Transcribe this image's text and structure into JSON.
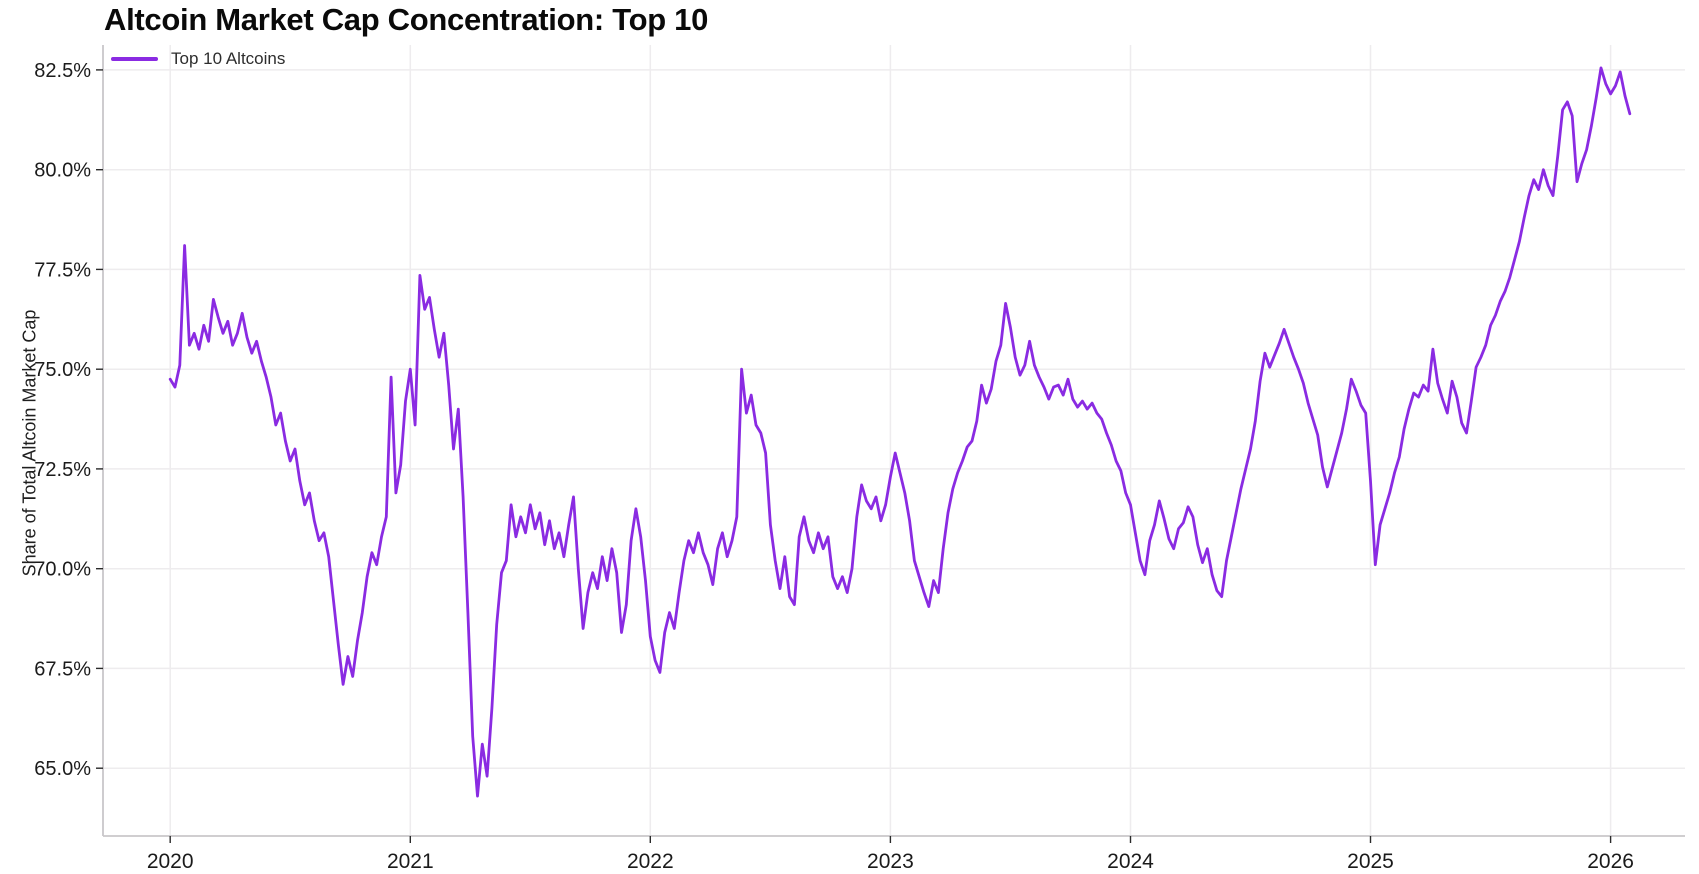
{
  "header": {
    "title": "Altcoin Market Cap Concentration: Top 10"
  },
  "chart_data": {
    "type": "line",
    "title": "Altcoin Market Cap Concentration: Top 10",
    "xlabel": "",
    "ylabel": "Share of Total Altcoin Market Cap",
    "legend_position": "top-left",
    "grid": true,
    "background_color": "#ffffff",
    "grid_color": "#eeecee",
    "spine_color": "#c9c7ca",
    "tick_color": "#2a2a2a",
    "xlim": [
      2019.72,
      2026.31
    ],
    "ylim": [
      63.3,
      83.05
    ],
    "x_ticks": {
      "values": [
        2020,
        2021,
        2022,
        2023,
        2024,
        2025,
        2026
      ],
      "labels": [
        "2020",
        "2021",
        "2022",
        "2023",
        "2024",
        "2025",
        "2026"
      ]
    },
    "y_ticks": {
      "values": [
        65.0,
        67.5,
        70.0,
        72.5,
        75.0,
        77.5,
        80.0,
        82.5
      ],
      "labels": [
        "65.0%",
        "67.5%",
        "70.0%",
        "72.5%",
        "75.0%",
        "77.5%",
        "80.0%",
        "82.5%"
      ]
    },
    "series": [
      {
        "name": "Top 10 Altcoins",
        "color": "#8A2BE2",
        "unit": "% share of total altcoin market cap",
        "x_start": 2020.0,
        "x_step": 0.02,
        "values": [
          74.75,
          74.55,
          75.1,
          78.1,
          75.6,
          75.9,
          75.5,
          76.1,
          75.7,
          76.75,
          76.3,
          75.9,
          76.2,
          75.6,
          75.9,
          76.4,
          75.8,
          75.4,
          75.7,
          75.2,
          74.8,
          74.3,
          73.6,
          73.9,
          73.2,
          72.7,
          73.0,
          72.2,
          71.6,
          71.9,
          71.2,
          70.7,
          70.9,
          70.3,
          69.2,
          68.1,
          67.1,
          67.8,
          67.3,
          68.2,
          68.9,
          69.8,
          70.4,
          70.1,
          70.8,
          71.3,
          74.8,
          71.9,
          72.6,
          74.2,
          75.0,
          73.6,
          77.35,
          76.5,
          76.8,
          76.0,
          75.3,
          75.9,
          74.6,
          73.0,
          74.0,
          71.8,
          68.9,
          65.8,
          64.3,
          65.6,
          64.8,
          66.5,
          68.6,
          69.9,
          70.2,
          71.6,
          70.8,
          71.3,
          70.9,
          71.6,
          71.0,
          71.4,
          70.6,
          71.2,
          70.5,
          70.9,
          70.3,
          71.1,
          71.8,
          70.0,
          68.5,
          69.4,
          69.9,
          69.5,
          70.3,
          69.7,
          70.5,
          69.9,
          68.4,
          69.1,
          70.7,
          71.5,
          70.8,
          69.7,
          68.3,
          67.7,
          67.4,
          68.4,
          68.9,
          68.5,
          69.4,
          70.2,
          70.7,
          70.4,
          70.9,
          70.4,
          70.1,
          69.6,
          70.5,
          70.9,
          70.3,
          70.7,
          71.3,
          75.0,
          73.9,
          74.35,
          73.6,
          73.4,
          72.9,
          71.1,
          70.2,
          69.5,
          70.3,
          69.3,
          69.1,
          70.8,
          71.3,
          70.7,
          70.4,
          70.9,
          70.5,
          70.8,
          69.8,
          69.5,
          69.8,
          69.4,
          70.0,
          71.3,
          72.1,
          71.7,
          71.5,
          71.8,
          71.2,
          71.6,
          72.3,
          72.9,
          72.4,
          71.9,
          71.2,
          70.2,
          69.8,
          69.4,
          69.05,
          69.7,
          69.4,
          70.5,
          71.4,
          72.0,
          72.4,
          72.7,
          73.05,
          73.2,
          73.7,
          74.6,
          74.15,
          74.5,
          75.2,
          75.6,
          76.65,
          76.05,
          75.3,
          74.85,
          75.1,
          75.7,
          75.1,
          74.8,
          74.55,
          74.25,
          74.55,
          74.6,
          74.35,
          74.75,
          74.25,
          74.05,
          74.2,
          74.0,
          74.15,
          73.9,
          73.75,
          73.4,
          73.1,
          72.7,
          72.45,
          71.9,
          71.6,
          70.9,
          70.2,
          69.85,
          70.7,
          71.1,
          71.7,
          71.25,
          70.75,
          70.5,
          71.0,
          71.15,
          71.55,
          71.3,
          70.6,
          70.15,
          70.5,
          69.85,
          69.45,
          69.3,
          70.2,
          70.8,
          71.4,
          72.0,
          72.5,
          73.0,
          73.7,
          74.7,
          75.4,
          75.05,
          75.35,
          75.65,
          76.0,
          75.65,
          75.3,
          75.0,
          74.65,
          74.15,
          73.75,
          73.35,
          72.55,
          72.05,
          72.5,
          72.95,
          73.4,
          74.0,
          74.75,
          74.45,
          74.1,
          73.9,
          72.2,
          70.1,
          71.1,
          71.5,
          71.9,
          72.4,
          72.8,
          73.5,
          74.0,
          74.4,
          74.3,
          74.6,
          74.45,
          75.5,
          74.65,
          74.25,
          73.9,
          74.7,
          74.3,
          73.65,
          73.4,
          74.2,
          75.05,
          75.3,
          75.6,
          76.1,
          76.35,
          76.7,
          76.95,
          77.3,
          77.75,
          78.2,
          78.8,
          79.35,
          79.75,
          79.5,
          80.0,
          79.6,
          79.35,
          80.35,
          81.5,
          81.7,
          81.35,
          79.7,
          80.15,
          80.5,
          81.1,
          81.8,
          82.55,
          82.15,
          81.9,
          82.1,
          82.45,
          81.85,
          81.4
        ]
      }
    ]
  }
}
